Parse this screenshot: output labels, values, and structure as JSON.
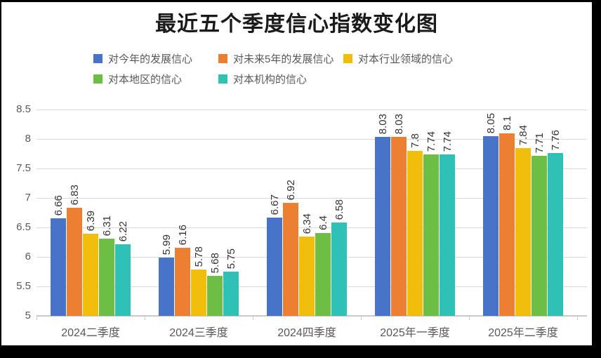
{
  "title": "最近五个季度信心指数变化图",
  "palette": {
    "letterbox": "#000000",
    "background": "#FFFFFF",
    "title_text": "#1A1A1A",
    "axis_text": "#595959",
    "legend_text": "#595959",
    "data_label_text": "#333333",
    "gridline": "#D9D9D9",
    "axis_line": "#C9C9C9"
  },
  "chart_data": {
    "type": "bar",
    "title": "最近五个季度信心指数变化图",
    "categories": [
      "2024二季度",
      "2024三季度",
      "2024四季度",
      "2025年一季度",
      "2025年二季度"
    ],
    "series": [
      {
        "name": "对今年的发展信心",
        "color": "#4774C9",
        "values": [
          6.66,
          5.99,
          6.67,
          8.03,
          8.05
        ]
      },
      {
        "name": "对未来5年的发展信心",
        "color": "#EC7F31",
        "values": [
          6.83,
          6.16,
          6.92,
          8.03,
          8.1
        ]
      },
      {
        "name": "对本行业领域的信心",
        "color": "#F0BE0B",
        "values": [
          6.39,
          5.78,
          6.34,
          7.8,
          7.84
        ]
      },
      {
        "name": "对本地区的信心",
        "color": "#6CBE45",
        "values": [
          6.31,
          5.68,
          6.4,
          7.74,
          7.71
        ]
      },
      {
        "name": "对本机构的信心",
        "color": "#2FC0B6",
        "values": [
          6.22,
          5.75,
          6.58,
          7.74,
          7.76
        ]
      }
    ],
    "ylim": [
      5,
      8.5
    ],
    "ytick_step": 0.5,
    "yticks": [
      "5",
      "5.5",
      "6",
      "6.5",
      "7",
      "7.5",
      "8",
      "8.5"
    ],
    "grid": true,
    "legend_position": "top",
    "legend_rows": [
      [
        0,
        1,
        2
      ],
      [
        3,
        4
      ]
    ],
    "data_labels": "rotated-90-above-bars"
  }
}
